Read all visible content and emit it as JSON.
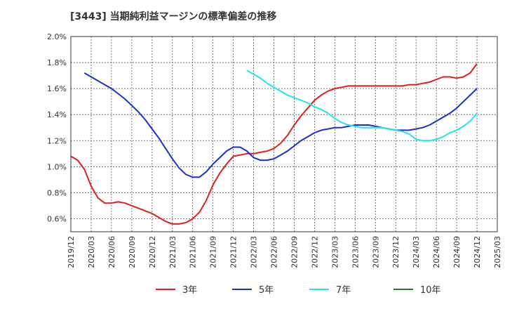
{
  "chart_data": {
    "type": "line",
    "title": "[3443]  当期純利益マージンの標準偏差の推移",
    "xlabel": "",
    "ylabel": "",
    "ylim": [
      0.5,
      2.0
    ],
    "y_ticks": [
      "0.6%",
      "0.8%",
      "1.0%",
      "1.2%",
      "1.4%",
      "1.6%",
      "1.8%",
      "2.0%"
    ],
    "y_tick_values": [
      0.6,
      0.8,
      1.0,
      1.2,
      1.4,
      1.6,
      1.8,
      2.0
    ],
    "x_ticks": [
      "2019/12",
      "2020/03",
      "2020/06",
      "2020/09",
      "2020/12",
      "2021/03",
      "2021/06",
      "2021/09",
      "2021/12",
      "2022/03",
      "2022/06",
      "2022/09",
      "2022/12",
      "2023/03",
      "2023/06",
      "2023/09",
      "2023/12",
      "2024/03",
      "2024/06",
      "2024/09",
      "2024/12",
      "2025/03"
    ],
    "grid": true,
    "legend_position": "bottom",
    "series": [
      {
        "name": "3年",
        "color": "#dd1f1f",
        "points": [
          [
            "2019/12",
            1.08
          ],
          [
            "2020/01",
            1.05
          ],
          [
            "2020/02",
            0.98
          ],
          [
            "2020/03",
            0.85
          ],
          [
            "2020/04",
            0.76
          ],
          [
            "2020/05",
            0.72
          ],
          [
            "2020/06",
            0.72
          ],
          [
            "2020/07",
            0.73
          ],
          [
            "2020/08",
            0.72
          ],
          [
            "2020/09",
            0.7
          ],
          [
            "2020/10",
            0.68
          ],
          [
            "2020/11",
            0.66
          ],
          [
            "2020/12",
            0.64
          ],
          [
            "2021/01",
            0.61
          ],
          [
            "2021/02",
            0.58
          ],
          [
            "2021/03",
            0.56
          ],
          [
            "2021/04",
            0.56
          ],
          [
            "2021/05",
            0.57
          ],
          [
            "2021/06",
            0.6
          ],
          [
            "2021/07",
            0.65
          ],
          [
            "2021/08",
            0.74
          ],
          [
            "2021/09",
            0.86
          ],
          [
            "2021/10",
            0.95
          ],
          [
            "2021/11",
            1.02
          ],
          [
            "2021/12",
            1.08
          ],
          [
            "2022/01",
            1.09
          ],
          [
            "2022/02",
            1.1
          ],
          [
            "2022/03",
            1.1
          ],
          [
            "2022/04",
            1.11
          ],
          [
            "2022/05",
            1.12
          ],
          [
            "2022/06",
            1.14
          ],
          [
            "2022/07",
            1.18
          ],
          [
            "2022/08",
            1.24
          ],
          [
            "2022/09",
            1.32
          ],
          [
            "2022/10",
            1.39
          ],
          [
            "2022/11",
            1.45
          ],
          [
            "2022/12",
            1.51
          ],
          [
            "2023/01",
            1.55
          ],
          [
            "2023/02",
            1.58
          ],
          [
            "2023/03",
            1.6
          ],
          [
            "2023/04",
            1.61
          ],
          [
            "2023/05",
            1.62
          ],
          [
            "2023/06",
            1.62
          ],
          [
            "2023/07",
            1.62
          ],
          [
            "2023/08",
            1.62
          ],
          [
            "2023/09",
            1.62
          ],
          [
            "2023/10",
            1.62
          ],
          [
            "2023/11",
            1.62
          ],
          [
            "2023/12",
            1.62
          ],
          [
            "2024/01",
            1.62
          ],
          [
            "2024/02",
            1.63
          ],
          [
            "2024/03",
            1.63
          ],
          [
            "2024/04",
            1.64
          ],
          [
            "2024/05",
            1.65
          ],
          [
            "2024/06",
            1.67
          ],
          [
            "2024/07",
            1.69
          ],
          [
            "2024/08",
            1.69
          ],
          [
            "2024/09",
            1.68
          ],
          [
            "2024/10",
            1.69
          ],
          [
            "2024/11",
            1.72
          ],
          [
            "2024/12",
            1.79
          ]
        ]
      },
      {
        "name": "5年",
        "color": "#1c2fcf",
        "points": [
          [
            "2020/02",
            1.72
          ],
          [
            "2020/03",
            1.69
          ],
          [
            "2020/04",
            1.66
          ],
          [
            "2020/05",
            1.63
          ],
          [
            "2020/06",
            1.6
          ],
          [
            "2020/07",
            1.56
          ],
          [
            "2020/08",
            1.52
          ],
          [
            "2020/09",
            1.47
          ],
          [
            "2020/10",
            1.42
          ],
          [
            "2020/11",
            1.36
          ],
          [
            "2020/12",
            1.29
          ],
          [
            "2021/01",
            1.22
          ],
          [
            "2021/02",
            1.14
          ],
          [
            "2021/03",
            1.06
          ],
          [
            "2021/04",
            0.99
          ],
          [
            "2021/05",
            0.94
          ],
          [
            "2021/06",
            0.92
          ],
          [
            "2021/07",
            0.92
          ],
          [
            "2021/08",
            0.96
          ],
          [
            "2021/09",
            1.02
          ],
          [
            "2021/10",
            1.07
          ],
          [
            "2021/11",
            1.12
          ],
          [
            "2021/12",
            1.15
          ],
          [
            "2022/01",
            1.15
          ],
          [
            "2022/02",
            1.12
          ],
          [
            "2022/03",
            1.07
          ],
          [
            "2022/04",
            1.05
          ],
          [
            "2022/05",
            1.05
          ],
          [
            "2022/06",
            1.06
          ],
          [
            "2022/07",
            1.09
          ],
          [
            "2022/08",
            1.12
          ],
          [
            "2022/09",
            1.16
          ],
          [
            "2022/10",
            1.2
          ],
          [
            "2022/11",
            1.23
          ],
          [
            "2022/12",
            1.26
          ],
          [
            "2023/01",
            1.28
          ],
          [
            "2023/02",
            1.29
          ],
          [
            "2023/03",
            1.3
          ],
          [
            "2023/04",
            1.3
          ],
          [
            "2023/05",
            1.31
          ],
          [
            "2023/06",
            1.32
          ],
          [
            "2023/07",
            1.32
          ],
          [
            "2023/08",
            1.32
          ],
          [
            "2023/09",
            1.31
          ],
          [
            "2023/10",
            1.3
          ],
          [
            "2023/11",
            1.29
          ],
          [
            "2023/12",
            1.28
          ],
          [
            "2024/01",
            1.28
          ],
          [
            "2024/02",
            1.28
          ],
          [
            "2024/03",
            1.29
          ],
          [
            "2024/04",
            1.3
          ],
          [
            "2024/05",
            1.32
          ],
          [
            "2024/06",
            1.35
          ],
          [
            "2024/07",
            1.38
          ],
          [
            "2024/08",
            1.41
          ],
          [
            "2024/09",
            1.45
          ],
          [
            "2024/10",
            1.5
          ],
          [
            "2024/11",
            1.55
          ],
          [
            "2024/12",
            1.6
          ]
        ]
      },
      {
        "name": "7年",
        "color": "#22e5f0",
        "points": [
          [
            "2022/02",
            1.74
          ],
          [
            "2022/03",
            1.71
          ],
          [
            "2022/04",
            1.68
          ],
          [
            "2022/05",
            1.64
          ],
          [
            "2022/06",
            1.61
          ],
          [
            "2022/07",
            1.58
          ],
          [
            "2022/08",
            1.55
          ],
          [
            "2022/09",
            1.53
          ],
          [
            "2022/10",
            1.51
          ],
          [
            "2022/11",
            1.49
          ],
          [
            "2022/12",
            1.46
          ],
          [
            "2023/01",
            1.44
          ],
          [
            "2023/02",
            1.41
          ],
          [
            "2023/03",
            1.37
          ],
          [
            "2023/04",
            1.34
          ],
          [
            "2023/05",
            1.32
          ],
          [
            "2023/06",
            1.31
          ],
          [
            "2023/07",
            1.3
          ],
          [
            "2023/08",
            1.3
          ],
          [
            "2023/09",
            1.3
          ],
          [
            "2023/10",
            1.3
          ],
          [
            "2023/11",
            1.29
          ],
          [
            "2023/12",
            1.28
          ],
          [
            "2024/01",
            1.27
          ],
          [
            "2024/02",
            1.25
          ],
          [
            "2024/03",
            1.21
          ],
          [
            "2024/04",
            1.2
          ],
          [
            "2024/05",
            1.2
          ],
          [
            "2024/06",
            1.21
          ],
          [
            "2024/07",
            1.23
          ],
          [
            "2024/08",
            1.26
          ],
          [
            "2024/09",
            1.28
          ],
          [
            "2024/10",
            1.31
          ],
          [
            "2024/11",
            1.35
          ],
          [
            "2024/12",
            1.41
          ]
        ]
      },
      {
        "name": "10年",
        "color": "#1a7d1a",
        "points": []
      }
    ]
  }
}
